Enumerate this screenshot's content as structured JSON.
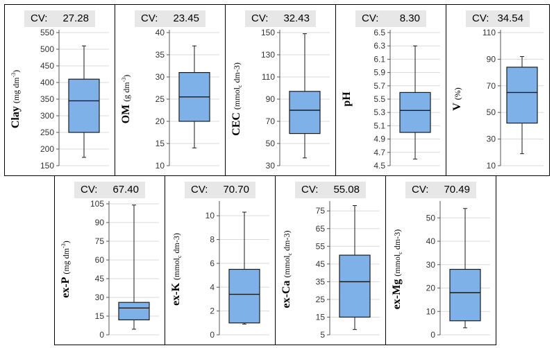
{
  "cv_label": "CV:",
  "colors": {
    "box_fill": "#7eb1e8",
    "box_stroke": "#1a1a1a",
    "grid": "#d9d9d9",
    "cv_bg": "#e7e7e7"
  },
  "chart_data": [
    {
      "type": "boxplot",
      "name": "clay",
      "cv": "27.28",
      "ylabel_main": "Clay",
      "ylabel_unit": "(mg dm",
      "ylabel_sub": "",
      "ylabel_sup": "-3",
      "ylabel_end": ")",
      "ylim": [
        150,
        550
      ],
      "ticks": [
        150,
        200,
        250,
        300,
        350,
        400,
        450,
        500,
        550
      ],
      "decimals": 0,
      "min": 175,
      "q1": 250,
      "median": 345,
      "q3": 410,
      "max": 510
    },
    {
      "type": "boxplot",
      "name": "om",
      "cv": "23.45",
      "ylabel_main": "OM",
      "ylabel_unit": "(g dm",
      "ylabel_sub": "",
      "ylabel_sup": "-3",
      "ylabel_end": ")",
      "ylim": [
        10,
        40
      ],
      "ticks": [
        10,
        15,
        20,
        25,
        30,
        35,
        40
      ],
      "decimals": 0,
      "min": 14,
      "q1": 20,
      "median": 25.5,
      "q3": 31,
      "max": 37
    },
    {
      "type": "boxplot",
      "name": "cec",
      "cv": "32.43",
      "ylabel_main": "CEC",
      "ylabel_unit": "(mmol",
      "ylabel_sub": "c",
      "ylabel_sup": "",
      "ylabel_end": " dm-3)",
      "ylim": [
        30,
        150
      ],
      "ticks": [
        30,
        50,
        70,
        90,
        110,
        130,
        150
      ],
      "decimals": 0,
      "min": 37,
      "q1": 59,
      "median": 80,
      "q3": 97,
      "max": 149
    },
    {
      "type": "boxplot",
      "name": "ph",
      "cv": "8.30",
      "ylabel_main": "pH",
      "ylabel_unit": "",
      "ylabel_sub": "",
      "ylabel_sup": "",
      "ylabel_end": "",
      "ylim": [
        4.5,
        6.5
      ],
      "ticks": [
        4.5,
        4.7,
        4.9,
        5.1,
        5.3,
        5.5,
        5.7,
        5.9,
        6.1,
        6.3,
        6.5
      ],
      "decimals": 1,
      "min": 4.6,
      "q1": 5.0,
      "median": 5.33,
      "q3": 5.6,
      "max": 6.3
    },
    {
      "type": "boxplot",
      "name": "v",
      "cv": "34.54",
      "ylabel_main": "V",
      "ylabel_unit": "(%)",
      "ylabel_sub": "",
      "ylabel_sup": "",
      "ylabel_end": "",
      "ylim": [
        10,
        110
      ],
      "ticks": [
        10,
        30,
        50,
        70,
        90,
        110
      ],
      "decimals": 0,
      "min": 19,
      "q1": 42,
      "median": 65,
      "q3": 84,
      "max": 92
    },
    {
      "type": "boxplot",
      "name": "ex-p",
      "cv": "67.40",
      "ylabel_main": "ex-P",
      "ylabel_unit": "(mg dm",
      "ylabel_sub": "",
      "ylabel_sup": "-3",
      "ylabel_end": ")",
      "ylim": [
        0,
        105
      ],
      "ticks": [
        0,
        15,
        30,
        45,
        60,
        75,
        90,
        105
      ],
      "decimals": 0,
      "min": 4.5,
      "q1": 12,
      "median": 21.5,
      "q3": 26,
      "max": 104
    },
    {
      "type": "boxplot",
      "name": "ex-k",
      "cv": "70.70",
      "ylabel_main": "ex-K",
      "ylabel_unit": "(mmol",
      "ylabel_sub": "c",
      "ylabel_sup": "",
      "ylabel_end": " dm-3)",
      "ylim": [
        0,
        11
      ],
      "ticks": [
        0,
        2,
        4,
        6,
        8,
        10
      ],
      "decimals": 0,
      "min": 0.9,
      "q1": 1.0,
      "median": 3.4,
      "q3": 5.5,
      "max": 10.3
    },
    {
      "type": "boxplot",
      "name": "ex-ca",
      "cv": "55.08",
      "ylabel_main": "ex-Ca",
      "ylabel_unit": "(mmol",
      "ylabel_sub": "c",
      "ylabel_sup": "",
      "ylabel_end": " dm-3)",
      "ylim": [
        5,
        79
      ],
      "ticks": [
        5,
        15,
        25,
        35,
        45,
        55,
        65,
        75
      ],
      "decimals": 0,
      "min": 8,
      "q1": 15,
      "median": 35,
      "q3": 50,
      "max": 78
    },
    {
      "type": "boxplot",
      "name": "ex-mg",
      "cv": "70.49",
      "ylabel_main": "ex-Mg",
      "ylabel_unit": "(mmol",
      "ylabel_sub": "c",
      "ylabel_sup": "",
      "ylabel_end": " dm-3)",
      "ylim": [
        0,
        56
      ],
      "ticks": [
        0,
        10,
        20,
        30,
        40,
        50
      ],
      "decimals": 0,
      "min": 3,
      "q1": 6,
      "median": 18,
      "q3": 28,
      "max": 54
    }
  ]
}
